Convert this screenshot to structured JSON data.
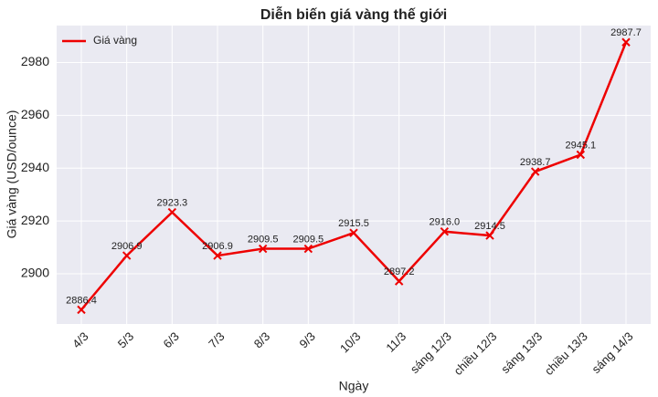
{
  "chart_data": {
    "type": "line",
    "title": "Diễn biến giá vàng thế giới",
    "x_label": "Ngày",
    "y_label": "Giá vàng (USD/ounce)",
    "categories": [
      "4/3",
      "5/3",
      "6/3",
      "7/3",
      "8/3",
      "9/3",
      "10/3",
      "11/3",
      "sáng 12/3",
      "chiều 12/3",
      "sáng 13/3",
      "chiều 13/3",
      "sáng 14/3"
    ],
    "series": [
      {
        "name": "Giá vàng",
        "color": "#ee0000",
        "values": [
          2886.4,
          2906.9,
          2923.3,
          2906.9,
          2909.5,
          2909.5,
          2915.5,
          2897.2,
          2916.0,
          2914.5,
          2938.7,
          2945.1,
          2987.7
        ],
        "value_labels": [
          "2886.4",
          "2906.9",
          "2923.3",
          "2906.9",
          "2909.5",
          "2909.5",
          "2915.5",
          "2897.2",
          "2916.0",
          "2914.5",
          "2938.7",
          "2945.1",
          "2987.7"
        ]
      }
    ],
    "ylim": [
      2881,
      2994
    ],
    "yticks": [
      2900,
      2920,
      2940,
      2960,
      2980
    ],
    "grid": true,
    "legend": "upper left"
  }
}
